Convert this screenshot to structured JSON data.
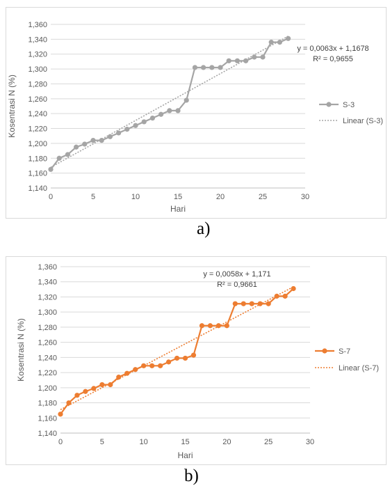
{
  "chart_data": [
    {
      "type": "line",
      "caption": "a)",
      "xlabel": "Hari",
      "ylabel": "Kosentrasi N (%)",
      "xlim": [
        0,
        30
      ],
      "ylim": [
        1.14,
        1.36
      ],
      "x_ticks": [
        "0",
        "5",
        "10",
        "15",
        "20",
        "25",
        "30"
      ],
      "y_ticks": [
        "1,140",
        "1,160",
        "1,180",
        "1,200",
        "1,220",
        "1,240",
        "1,260",
        "1,280",
        "1,300",
        "1,320",
        "1,340",
        "1,360"
      ],
      "grid": true,
      "legend_position": "right",
      "series": [
        {
          "name": "S-3",
          "color": "#a5a5a5",
          "x": [
            0,
            1,
            2,
            3,
            4,
            5,
            6,
            7,
            8,
            9,
            10,
            11,
            12,
            13,
            14,
            15,
            16,
            17,
            18,
            19,
            20,
            21,
            22,
            23,
            24,
            25,
            26,
            27,
            28
          ],
          "y": [
            1.165,
            1.18,
            1.185,
            1.195,
            1.199,
            1.204,
            1.204,
            1.209,
            1.214,
            1.219,
            1.224,
            1.229,
            1.234,
            1.239,
            1.244,
            1.244,
            1.258,
            1.302,
            1.302,
            1.302,
            1.302,
            1.311,
            1.311,
            1.311,
            1.316,
            1.316,
            1.336,
            1.336,
            1.341
          ]
        }
      ],
      "trendline": {
        "name": "Linear (S-3)",
        "color": "#a5a5a5",
        "slope": 0.0063,
        "intercept": 1.1678,
        "equation": "y = 0,0063x + 1,1678",
        "r2": "R² = 0,9655"
      }
    },
    {
      "type": "line",
      "caption": "b)",
      "xlabel": "Hari",
      "ylabel": "Kosentrasi N (%)",
      "xlim": [
        0,
        30
      ],
      "ylim": [
        1.14,
        1.36
      ],
      "x_ticks": [
        "0",
        "5",
        "10",
        "15",
        "20",
        "25",
        "30"
      ],
      "y_ticks": [
        "1,140",
        "1,160",
        "1,180",
        "1,200",
        "1,220",
        "1,240",
        "1,260",
        "1,280",
        "1,300",
        "1,320",
        "1,340",
        "1,360"
      ],
      "grid": true,
      "legend_position": "right",
      "series": [
        {
          "name": "S-7",
          "color": "#ed7d31",
          "x": [
            0,
            1,
            2,
            3,
            4,
            5,
            6,
            7,
            8,
            9,
            10,
            11,
            12,
            13,
            14,
            15,
            16,
            17,
            18,
            19,
            20,
            21,
            22,
            23,
            24,
            25,
            26,
            27,
            28
          ],
          "y": [
            1.165,
            1.18,
            1.19,
            1.195,
            1.199,
            1.204,
            1.204,
            1.214,
            1.219,
            1.224,
            1.229,
            1.229,
            1.229,
            1.234,
            1.239,
            1.239,
            1.243,
            1.282,
            1.282,
            1.282,
            1.282,
            1.311,
            1.311,
            1.311,
            1.311,
            1.311,
            1.321,
            1.321,
            1.331
          ]
        }
      ],
      "trendline": {
        "name": "Linear (S-7)",
        "color": "#ed7d31",
        "slope": 0.0058,
        "intercept": 1.171,
        "equation": "y = 0,0058x + 1,171",
        "r2": "R² = 0,9661"
      }
    }
  ]
}
